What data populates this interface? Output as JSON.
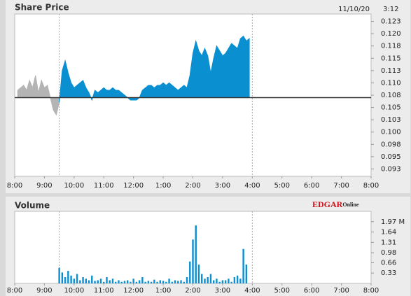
{
  "chart_data": [
    {
      "type": "area",
      "title": "Share Price",
      "date": "11/10/20",
      "time": "3:12",
      "xlim": [
        8,
        20
      ],
      "xticks": [
        {
          "value": 8,
          "label": "8:00"
        },
        {
          "value": 9,
          "label": "9:00"
        },
        {
          "value": 10,
          "label": "10:00"
        },
        {
          "value": 11,
          "label": "11:00"
        },
        {
          "value": 12,
          "label": "12:00"
        },
        {
          "value": 13,
          "label": "1:00"
        },
        {
          "value": 14,
          "label": "2:00"
        },
        {
          "value": 15,
          "label": "3:00"
        },
        {
          "value": 16,
          "label": "4:00"
        },
        {
          "value": 17,
          "label": "5:00"
        },
        {
          "value": 18,
          "label": "6:00"
        },
        {
          "value": 19,
          "label": "7:00"
        },
        {
          "value": 20,
          "label": "8:00"
        }
      ],
      "session_lines": [
        9.5,
        16
      ],
      "ylim": [
        0.091,
        0.124
      ],
      "yticks": [
        {
          "value": 0.0925,
          "label": "0.093"
        },
        {
          "value": 0.095,
          "label": "0.095"
        },
        {
          "value": 0.0975,
          "label": "0.098"
        },
        {
          "value": 0.1,
          "label": "0.100"
        },
        {
          "value": 0.1025,
          "label": "0.103"
        },
        {
          "value": 0.105,
          "label": "0.105"
        },
        {
          "value": 0.1075,
          "label": "0.108"
        },
        {
          "value": 0.11,
          "label": "0.110"
        },
        {
          "value": 0.1125,
          "label": "0.113"
        },
        {
          "value": 0.115,
          "label": "0.115"
        },
        {
          "value": 0.1175,
          "label": "0.118"
        },
        {
          "value": 0.12,
          "label": "0.120"
        },
        {
          "value": 0.1225,
          "label": "0.123"
        }
      ],
      "baseline": 0.107,
      "x": [
        8.1,
        8.2,
        8.3,
        8.4,
        8.5,
        8.6,
        8.7,
        8.8,
        8.9,
        9.0,
        9.1,
        9.2,
        9.3,
        9.4,
        9.5,
        9.6,
        9.7,
        9.8,
        9.9,
        10.0,
        10.1,
        10.2,
        10.3,
        10.4,
        10.5,
        10.6,
        10.7,
        10.8,
        10.9,
        11.0,
        11.1,
        11.2,
        11.3,
        11.4,
        11.5,
        11.6,
        11.7,
        11.8,
        11.9,
        12.0,
        12.1,
        12.2,
        12.3,
        12.4,
        12.5,
        12.6,
        12.7,
        12.8,
        12.9,
        13.0,
        13.1,
        13.2,
        13.3,
        13.4,
        13.5,
        13.6,
        13.7,
        13.8,
        13.9,
        14.0,
        14.1,
        14.2,
        14.3,
        14.4,
        14.5,
        14.6,
        14.7,
        14.8,
        14.9,
        15.0,
        15.1,
        15.2,
        15.3,
        15.4,
        15.5,
        15.6,
        15.7,
        15.8,
        15.9
      ],
      "series": [
        {
          "color": "#b4b4b4",
          "values": [
            0.1085,
            0.109,
            0.1095,
            0.1085,
            0.1105,
            0.109,
            0.1115,
            0.108,
            0.1105,
            0.109,
            0.1095,
            0.107,
            0.1045,
            0.1035,
            0.106,
            null,
            null,
            null,
            null,
            null,
            null,
            null,
            null,
            null,
            null,
            null,
            null,
            null,
            null,
            null,
            null,
            null,
            null,
            null,
            null,
            null,
            null,
            null,
            null,
            null,
            null,
            null,
            null,
            null,
            null,
            null,
            null,
            null,
            null,
            null,
            null,
            null,
            null,
            null,
            null,
            null,
            null,
            null,
            null,
            null,
            null,
            null,
            null,
            null,
            null,
            null,
            null,
            null,
            null,
            null,
            null,
            null,
            null,
            null,
            null,
            null,
            null,
            null,
            null
          ]
        },
        {
          "color": "#0a8fd0",
          "values": [
            null,
            null,
            null,
            null,
            null,
            null,
            null,
            null,
            null,
            null,
            null,
            null,
            null,
            null,
            0.106,
            0.1125,
            0.1145,
            0.112,
            0.11,
            0.109,
            0.1095,
            0.11,
            0.1105,
            0.109,
            0.108,
            0.1065,
            0.1085,
            0.108,
            0.1085,
            0.109,
            0.1085,
            0.1085,
            0.109,
            0.1085,
            0.1085,
            0.108,
            0.1075,
            0.107,
            0.1065,
            0.1065,
            0.1065,
            0.107,
            0.1085,
            0.109,
            0.1095,
            0.1095,
            0.109,
            0.1095,
            0.1095,
            0.11,
            0.1095,
            0.11,
            0.1095,
            0.109,
            0.1085,
            0.109,
            0.1095,
            0.109,
            0.1115,
            0.116,
            0.1185,
            0.1165,
            0.1155,
            0.117,
            0.1155,
            0.112,
            0.115,
            0.1175,
            0.1165,
            0.1155,
            0.116,
            0.117,
            0.118,
            0.1175,
            0.117,
            0.119,
            0.1195,
            0.1185,
            0.119
          ]
        }
      ]
    },
    {
      "type": "bar",
      "title": "Volume",
      "logo": {
        "brand": "EDGAR",
        "suffix": "Online"
      },
      "xlim": [
        8,
        20
      ],
      "xticks": [
        {
          "value": 8,
          "label": "8:00"
        },
        {
          "value": 9,
          "label": "9:00"
        },
        {
          "value": 10,
          "label": "10:00"
        },
        {
          "value": 11,
          "label": "11:00"
        },
        {
          "value": 12,
          "label": "12:00"
        },
        {
          "value": 13,
          "label": "1:00"
        },
        {
          "value": 14,
          "label": "2:00"
        },
        {
          "value": 15,
          "label": "3:00"
        },
        {
          "value": 16,
          "label": "4:00"
        },
        {
          "value": 17,
          "label": "5:00"
        },
        {
          "value": 18,
          "label": "6:00"
        },
        {
          "value": 19,
          "label": "7:00"
        },
        {
          "value": 20,
          "label": "8:00"
        }
      ],
      "session_lines": [
        9.5,
        16
      ],
      "ylim": [
        0,
        2.3
      ],
      "yticks": [
        0.33,
        0.66,
        0.98,
        1.31,
        1.64,
        {
          "value": 1.97,
          "label": "1.97 M"
        }
      ],
      "color": "#0a8fd0",
      "x": [
        9.5,
        9.6,
        9.7,
        9.8,
        9.9,
        10.0,
        10.1,
        10.2,
        10.3,
        10.4,
        10.5,
        10.6,
        10.7,
        10.8,
        10.9,
        11.0,
        11.1,
        11.2,
        11.3,
        11.4,
        11.5,
        11.6,
        11.7,
        11.8,
        11.9,
        12.0,
        12.1,
        12.2,
        12.3,
        12.4,
        12.5,
        12.6,
        12.7,
        12.8,
        12.9,
        13.0,
        13.1,
        13.2,
        13.3,
        13.4,
        13.5,
        13.6,
        13.7,
        13.8,
        13.9,
        14.0,
        14.1,
        14.2,
        14.3,
        14.4,
        14.5,
        14.6,
        14.7,
        14.8,
        14.9,
        15.0,
        15.1,
        15.2,
        15.3,
        15.4,
        15.5,
        15.6,
        15.7,
        15.8
      ],
      "values": [
        0.5,
        0.35,
        0.2,
        0.4,
        0.25,
        0.15,
        0.3,
        0.1,
        0.2,
        0.15,
        0.1,
        0.25,
        0.08,
        0.1,
        0.15,
        0.05,
        0.2,
        0.1,
        0.15,
        0.05,
        0.1,
        0.05,
        0.08,
        0.1,
        0.05,
        0.15,
        0.05,
        0.1,
        0.2,
        0.05,
        0.08,
        0.05,
        0.12,
        0.05,
        0.1,
        0.08,
        0.05,
        0.15,
        0.05,
        0.1,
        0.08,
        0.1,
        0.05,
        0.2,
        0.7,
        1.4,
        1.85,
        0.6,
        0.3,
        0.15,
        0.2,
        0.3,
        0.1,
        0.15,
        0.05,
        0.1,
        0.1,
        0.15,
        0.05,
        0.2,
        0.25,
        0.15,
        1.1,
        0.6
      ]
    }
  ]
}
